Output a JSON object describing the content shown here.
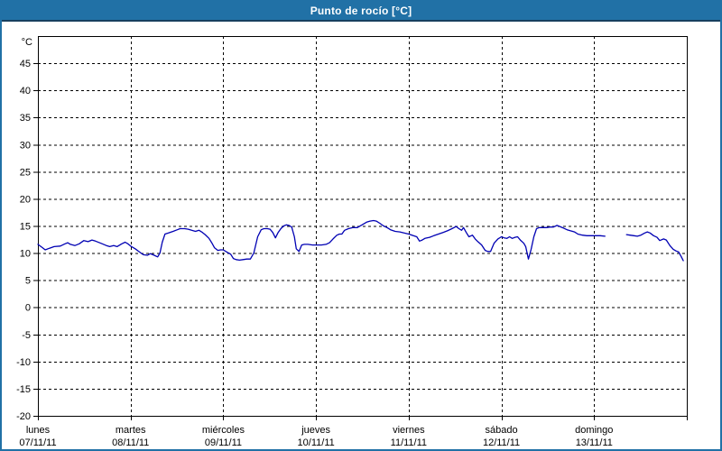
{
  "window": {
    "title": "Punto de rocío [°C]"
  },
  "colors": {
    "titlebar_bg": "#2171a6",
    "titlebar_border": "#173f5f",
    "frame": "#2171a6",
    "plot_border": "#000000",
    "grid": "#000000",
    "text": "#000000",
    "line": "#0000b3",
    "background": "#ffffff"
  },
  "chart_data": {
    "type": "line",
    "title": "Punto de rocío [°C]",
    "y_unit": "°C",
    "ylabel": "°C",
    "ylim": [
      -20,
      50
    ],
    "y_ticks": [
      45,
      40,
      35,
      30,
      25,
      20,
      15,
      10,
      5,
      0,
      -5,
      -10,
      -15,
      -20
    ],
    "grid": "dashed",
    "x_total_hours": 168,
    "x_days": [
      {
        "name": "lunes",
        "date": "07/11/11"
      },
      {
        "name": "martes",
        "date": "08/11/11"
      },
      {
        "name": "miércoles",
        "date": "09/11/11"
      },
      {
        "name": "jueves",
        "date": "10/11/11"
      },
      {
        "name": "viernes",
        "date": "11/11/11"
      },
      {
        "name": "sábado",
        "date": "12/11/11"
      },
      {
        "name": "domingo",
        "date": "13/11/11"
      }
    ],
    "series": [
      {
        "name": "Punto de rocío",
        "unit": "°C",
        "color": "#0000b3",
        "segments": [
          [
            [
              0,
              11.6
            ],
            [
              1.2,
              11.0
            ],
            [
              1.9,
              10.6
            ],
            [
              3.0,
              10.9
            ],
            [
              4.2,
              11.2
            ],
            [
              5.8,
              11.3
            ],
            [
              7.0,
              11.7
            ],
            [
              7.7,
              11.9
            ],
            [
              8.4,
              11.6
            ],
            [
              9.6,
              11.4
            ],
            [
              10.7,
              11.7
            ],
            [
              11.9,
              12.3
            ],
            [
              13.0,
              12.1
            ],
            [
              14.0,
              12.4
            ],
            [
              14.9,
              12.2
            ],
            [
              16.3,
              11.8
            ],
            [
              17.7,
              11.4
            ],
            [
              18.6,
              11.2
            ],
            [
              19.6,
              11.4
            ],
            [
              20.5,
              11.2
            ],
            [
              21.7,
              11.7
            ],
            [
              22.6,
              12.0
            ],
            [
              23.3,
              11.7
            ],
            [
              24.0,
              11.3
            ],
            [
              25.2,
              10.8
            ],
            [
              26.3,
              10.2
            ],
            [
              27.3,
              9.7
            ],
            [
              28.4,
              9.6
            ],
            [
              29.1,
              9.9
            ],
            [
              30.1,
              9.6
            ],
            [
              31.0,
              9.3
            ],
            [
              31.6,
              10.0
            ],
            [
              32.2,
              12.0
            ],
            [
              32.9,
              13.5
            ],
            [
              33.8,
              13.7
            ],
            [
              35.0,
              14.0
            ],
            [
              36.1,
              14.3
            ],
            [
              36.8,
              14.5
            ],
            [
              38.0,
              14.5
            ],
            [
              38.9,
              14.4
            ],
            [
              39.8,
              14.2
            ],
            [
              40.8,
              14.0
            ],
            [
              41.7,
              14.2
            ],
            [
              42.6,
              13.8
            ],
            [
              43.3,
              13.4
            ],
            [
              44.3,
              12.7
            ],
            [
              45.0,
              11.9
            ],
            [
              45.7,
              11.0
            ],
            [
              46.6,
              10.5
            ],
            [
              47.3,
              10.6
            ],
            [
              48.0,
              10.6
            ],
            [
              48.9,
              10.2
            ],
            [
              49.9,
              9.8
            ],
            [
              50.6,
              9.0
            ],
            [
              51.3,
              8.8
            ],
            [
              52.2,
              8.7
            ],
            [
              53.1,
              8.8
            ],
            [
              54.1,
              8.9
            ],
            [
              55.0,
              8.9
            ],
            [
              55.9,
              10.0
            ],
            [
              56.9,
              13.0
            ],
            [
              57.8,
              14.3
            ],
            [
              58.5,
              14.5
            ],
            [
              59.4,
              14.5
            ],
            [
              60.1,
              14.4
            ],
            [
              60.8,
              13.8
            ],
            [
              61.5,
              12.8
            ],
            [
              62.2,
              13.8
            ],
            [
              62.9,
              14.5
            ],
            [
              63.6,
              15.0
            ],
            [
              64.3,
              15.2
            ],
            [
              65.0,
              15.1
            ],
            [
              65.7,
              14.8
            ],
            [
              66.4,
              13.0
            ],
            [
              66.9,
              10.8
            ],
            [
              67.6,
              10.3
            ],
            [
              68.3,
              11.5
            ],
            [
              69.0,
              11.6
            ],
            [
              69.9,
              11.6
            ],
            [
              71.1,
              11.5
            ],
            [
              72.2,
              11.5
            ],
            [
              73.4,
              11.5
            ],
            [
              74.6,
              11.6
            ],
            [
              75.5,
              11.9
            ],
            [
              76.4,
              12.6
            ],
            [
              77.4,
              13.3
            ],
            [
              78.1,
              13.5
            ],
            [
              78.7,
              13.5
            ],
            [
              79.4,
              14.2
            ],
            [
              80.4,
              14.5
            ],
            [
              81.6,
              14.7
            ],
            [
              82.7,
              14.7
            ],
            [
              83.9,
              15.2
            ],
            [
              85.1,
              15.7
            ],
            [
              86.0,
              15.9
            ],
            [
              86.9,
              16.0
            ],
            [
              87.6,
              15.9
            ],
            [
              88.5,
              15.5
            ],
            [
              89.5,
              15.0
            ],
            [
              90.4,
              14.7
            ],
            [
              91.3,
              14.3
            ],
            [
              92.5,
              14.0
            ],
            [
              93.7,
              13.9
            ],
            [
              94.8,
              13.7
            ],
            [
              96.0,
              13.5
            ],
            [
              97.2,
              13.2
            ],
            [
              98.1,
              13.0
            ],
            [
              98.8,
              12.2
            ],
            [
              99.5,
              12.4
            ],
            [
              100.2,
              12.7
            ],
            [
              101.4,
              12.9
            ],
            [
              102.5,
              13.2
            ],
            [
              103.7,
              13.5
            ],
            [
              104.9,
              13.8
            ],
            [
              106.0,
              14.1
            ],
            [
              107.2,
              14.5
            ],
            [
              108.3,
              14.9
            ],
            [
              109.0,
              14.5
            ],
            [
              109.7,
              14.2
            ],
            [
              110.2,
              14.7
            ],
            [
              110.9,
              13.8
            ],
            [
              111.6,
              13.0
            ],
            [
              112.5,
              13.3
            ],
            [
              113.2,
              12.6
            ],
            [
              113.9,
              12.1
            ],
            [
              114.9,
              11.5
            ],
            [
              115.8,
              10.5
            ],
            [
              116.5,
              10.3
            ],
            [
              117.2,
              10.3
            ],
            [
              118.1,
              11.8
            ],
            [
              119.1,
              12.6
            ],
            [
              120.0,
              13.0
            ],
            [
              120.7,
              12.8
            ],
            [
              121.4,
              12.7
            ],
            [
              122.1,
              13.0
            ],
            [
              122.8,
              12.7
            ],
            [
              123.5,
              12.9
            ],
            [
              124.2,
              13.0
            ],
            [
              124.9,
              12.4
            ],
            [
              125.8,
              11.8
            ],
            [
              126.3,
              11.2
            ],
            [
              127.0,
              8.9
            ],
            [
              127.7,
              10.7
            ],
            [
              128.4,
              13.0
            ],
            [
              129.1,
              14.5
            ],
            [
              129.8,
              14.7
            ],
            [
              130.7,
              14.7
            ],
            [
              131.6,
              14.7
            ],
            [
              132.6,
              14.8
            ],
            [
              133.5,
              14.8
            ],
            [
              134.4,
              15.1
            ],
            [
              135.1,
              14.9
            ],
            [
              136.1,
              14.6
            ],
            [
              137.0,
              14.3
            ],
            [
              137.9,
              14.1
            ],
            [
              138.9,
              13.9
            ],
            [
              139.8,
              13.5
            ],
            [
              141.0,
              13.3
            ],
            [
              142.1,
              13.2
            ],
            [
              143.3,
              13.2
            ],
            [
              144.5,
              13.2
            ],
            [
              145.6,
              13.2
            ],
            [
              146.8,
              13.1
            ]
          ],
          [
            [
              152.4,
              13.4
            ],
            [
              153.3,
              13.3
            ],
            [
              154.3,
              13.2
            ],
            [
              155.2,
              13.1
            ],
            [
              156.1,
              13.3
            ],
            [
              157.1,
              13.7
            ],
            [
              157.8,
              13.9
            ],
            [
              158.5,
              13.7
            ],
            [
              159.4,
              13.2
            ],
            [
              160.3,
              12.9
            ],
            [
              161.0,
              12.3
            ],
            [
              162.0,
              12.6
            ],
            [
              162.7,
              12.4
            ],
            [
              163.6,
              11.4
            ],
            [
              164.5,
              10.7
            ],
            [
              165.2,
              10.4
            ],
            [
              165.9,
              10.2
            ],
            [
              166.6,
              9.3
            ],
            [
              167.1,
              8.6
            ]
          ]
        ]
      }
    ]
  }
}
